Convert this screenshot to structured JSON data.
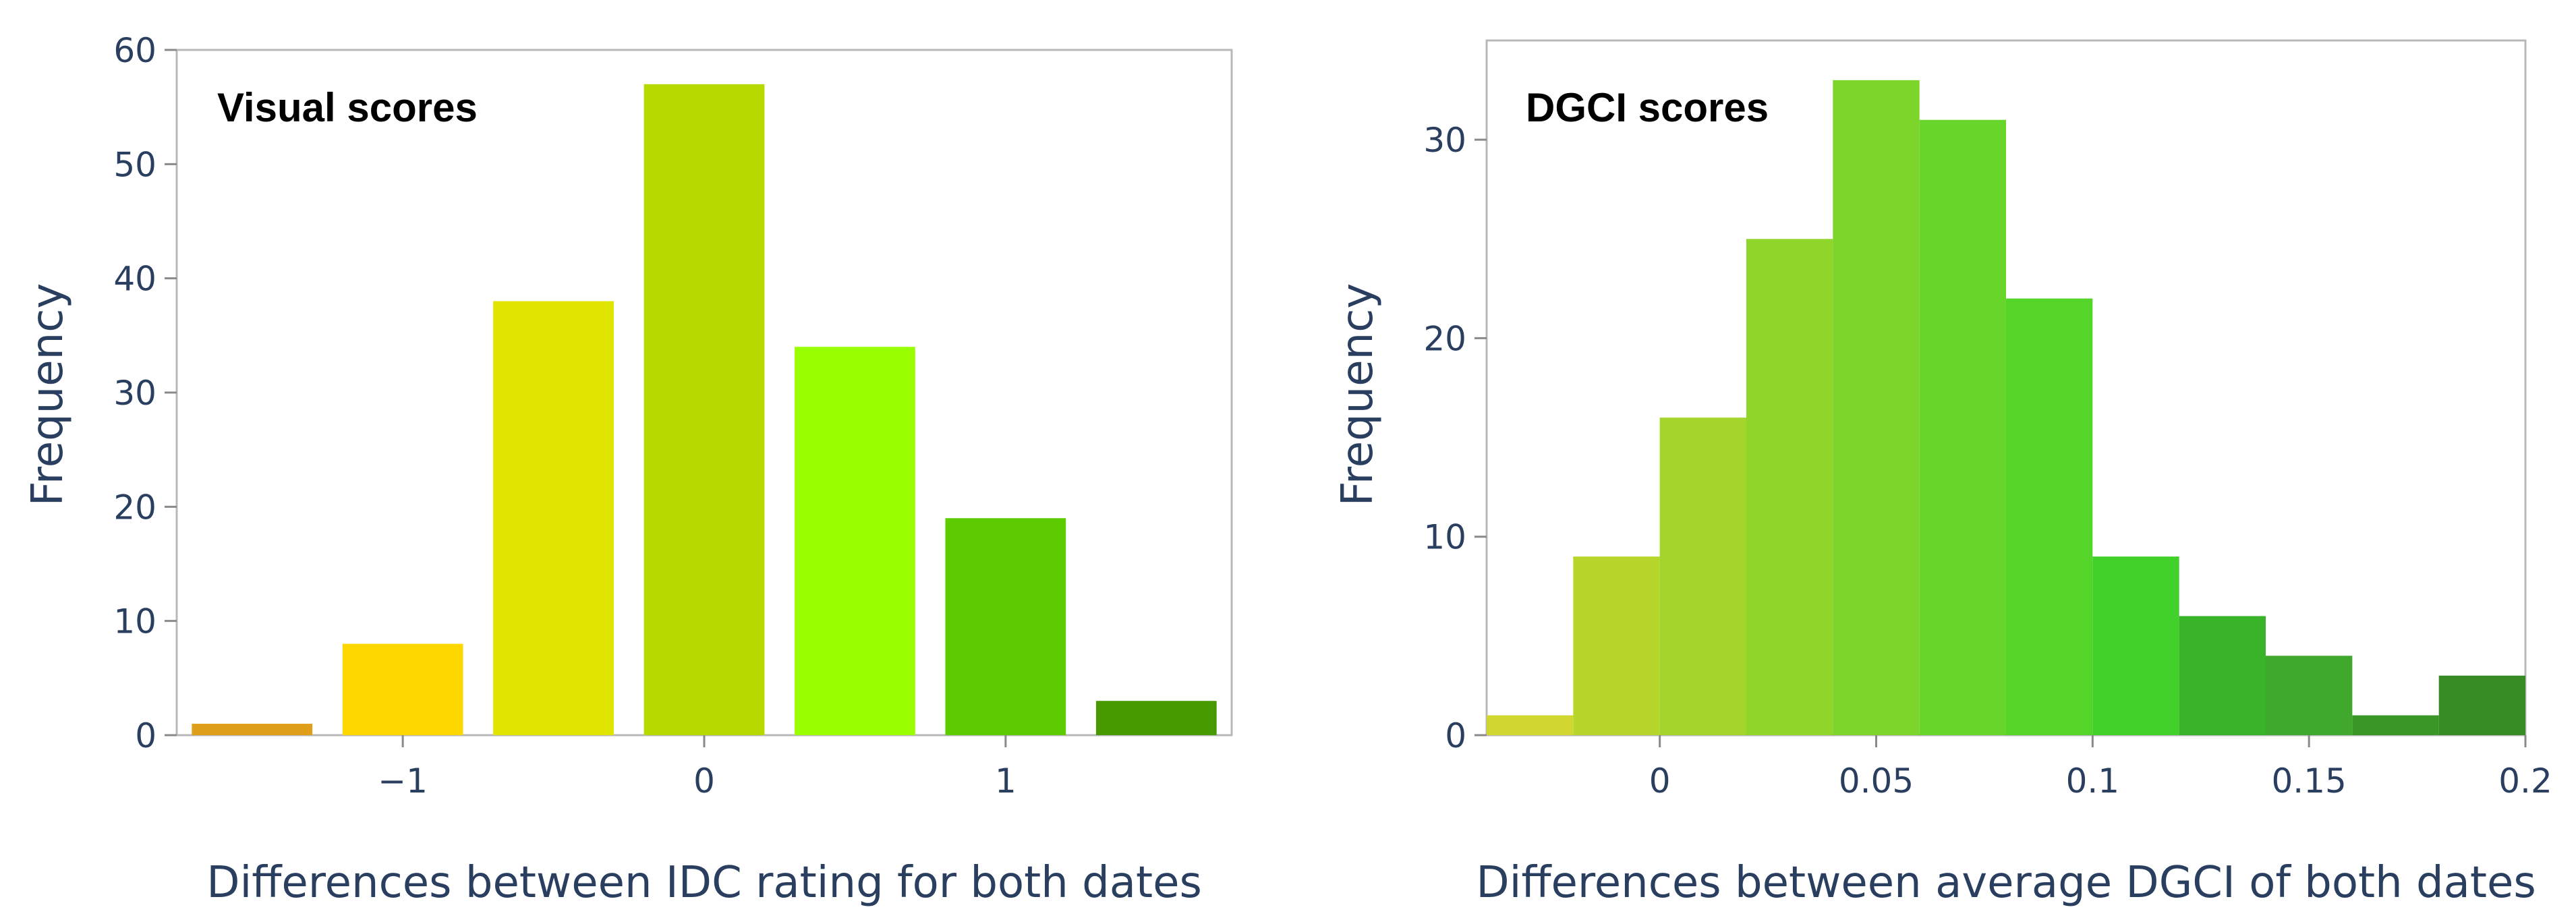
{
  "chart_data": [
    {
      "type": "bar",
      "title": "Visual scores",
      "xlabel": "Differences between IDC rating for both dates",
      "ylabel": "Frequency",
      "categories": [
        -1.5,
        -1,
        -0.5,
        0,
        0.5,
        1,
        1.5
      ],
      "values": [
        1,
        8,
        38,
        57,
        34,
        19,
        3
      ],
      "colors": [
        "#e09f1a",
        "#ffd700",
        "#dfe500",
        "#b8d900",
        "#99ff00",
        "#5ccc00",
        "#469a00"
      ],
      "xlim": [
        -1.75,
        1.75
      ],
      "ylim": [
        0,
        60
      ],
      "xticks": [
        -1,
        0,
        1
      ],
      "xtick_labels": [
        "−1",
        "0",
        "1"
      ],
      "yticks": [
        0,
        10,
        20,
        30,
        40,
        50,
        60
      ],
      "ytick_labels": [
        "0",
        "10",
        "20",
        "30",
        "40",
        "50",
        "60"
      ],
      "grid": false
    },
    {
      "type": "bar",
      "title": "DGCI scores",
      "xlabel": "Differences between average DGCI of both dates",
      "ylabel": "Frequency",
      "bin_starts": [
        -0.04,
        -0.02,
        0.0,
        0.02,
        0.04,
        0.06,
        0.08,
        0.1,
        0.12,
        0.14,
        0.16,
        0.18
      ],
      "bin_width": 0.02,
      "values": [
        1,
        9,
        16,
        25,
        33,
        31,
        22,
        9,
        6,
        4,
        1,
        3
      ],
      "colors": [
        "#d2d630",
        "#b6d62b",
        "#a5d52c",
        "#8fd52a",
        "#7dd42a",
        "#68d52a",
        "#55d42a",
        "#42d02a",
        "#39b32a",
        "#3fa82d",
        "#3a9727",
        "#378c26"
      ],
      "xlim": [
        -0.04,
        0.2
      ],
      "ylim": [
        0,
        35
      ],
      "xticks": [
        0,
        0.05,
        0.1,
        0.15,
        0.2
      ],
      "xtick_labels": [
        "0",
        "0.05",
        "0.1",
        "0.15",
        "0.2"
      ],
      "yticks": [
        0,
        10,
        20,
        30
      ],
      "ytick_labels": [
        "0",
        "10",
        "20",
        "30"
      ],
      "grid": false
    }
  ]
}
